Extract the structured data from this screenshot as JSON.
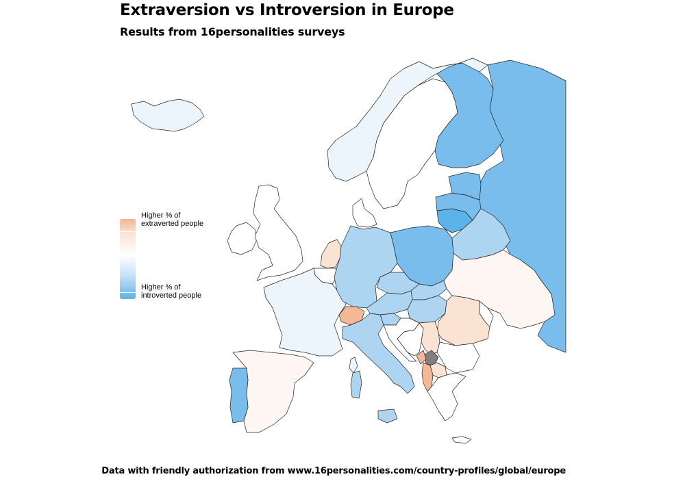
{
  "header": {
    "title": "Extraversion vs Introversion in Europe",
    "subtitle": "Results from 16personalities surveys"
  },
  "legend": {
    "high_label": "Higher % of\nextraverted people",
    "low_label": "Higher % of\nintroverted people",
    "colors": {
      "extraverted": "#f4b48f",
      "neutral": "#ffffff",
      "introverted": "#5db2e8",
      "no_data": "#808080"
    }
  },
  "caption": "Data with friendly authorization from www.16personalities.com/country-profiles/global/europe",
  "map": {
    "countries": [
      {
        "name": "Iceland",
        "level": "slightly-introverted"
      },
      {
        "name": "Norway",
        "level": "slightly-introverted"
      },
      {
        "name": "Sweden",
        "level": "neutral"
      },
      {
        "name": "Finland",
        "level": "introverted"
      },
      {
        "name": "Russia",
        "level": "introverted"
      },
      {
        "name": "Estonia",
        "level": "introverted"
      },
      {
        "name": "Latvia",
        "level": "introverted"
      },
      {
        "name": "Lithuania",
        "level": "strongly-introverted"
      },
      {
        "name": "Belarus",
        "level": "moderately-introverted"
      },
      {
        "name": "Ireland",
        "level": "neutral"
      },
      {
        "name": "United Kingdom",
        "level": "neutral"
      },
      {
        "name": "Netherlands",
        "level": "slightly-extraverted"
      },
      {
        "name": "Belgium",
        "level": "neutral"
      },
      {
        "name": "Denmark",
        "level": "neutral"
      },
      {
        "name": "Germany",
        "level": "moderately-introverted"
      },
      {
        "name": "Poland",
        "level": "introverted"
      },
      {
        "name": "Czech Republic",
        "level": "moderately-introverted"
      },
      {
        "name": "Slovakia",
        "level": "moderately-introverted"
      },
      {
        "name": "Austria",
        "level": "moderately-introverted"
      },
      {
        "name": "Hungary",
        "level": "moderately-introverted"
      },
      {
        "name": "Switzerland",
        "level": "extraverted"
      },
      {
        "name": "France",
        "level": "slightly-introverted"
      },
      {
        "name": "Spain",
        "level": "faintly-extraverted"
      },
      {
        "name": "Portugal",
        "level": "introverted"
      },
      {
        "name": "Italy",
        "level": "moderately-introverted"
      },
      {
        "name": "Slovenia",
        "level": "moderately-introverted"
      },
      {
        "name": "Croatia",
        "level": "neutral"
      },
      {
        "name": "Bosnia and Herzegovina",
        "level": "neutral"
      },
      {
        "name": "Serbia",
        "level": "slightly-extraverted"
      },
      {
        "name": "Montenegro",
        "level": "extraverted"
      },
      {
        "name": "Kosovo",
        "level": "no-data"
      },
      {
        "name": "Albania",
        "level": "extraverted"
      },
      {
        "name": "North Macedonia",
        "level": "slightly-extraverted"
      },
      {
        "name": "Bulgaria",
        "level": "neutral"
      },
      {
        "name": "Romania",
        "level": "slightly-extraverted"
      },
      {
        "name": "Moldova",
        "level": "neutral"
      },
      {
        "name": "Ukraine",
        "level": "faintly-extraverted"
      },
      {
        "name": "Greece",
        "level": "neutral"
      }
    ]
  }
}
